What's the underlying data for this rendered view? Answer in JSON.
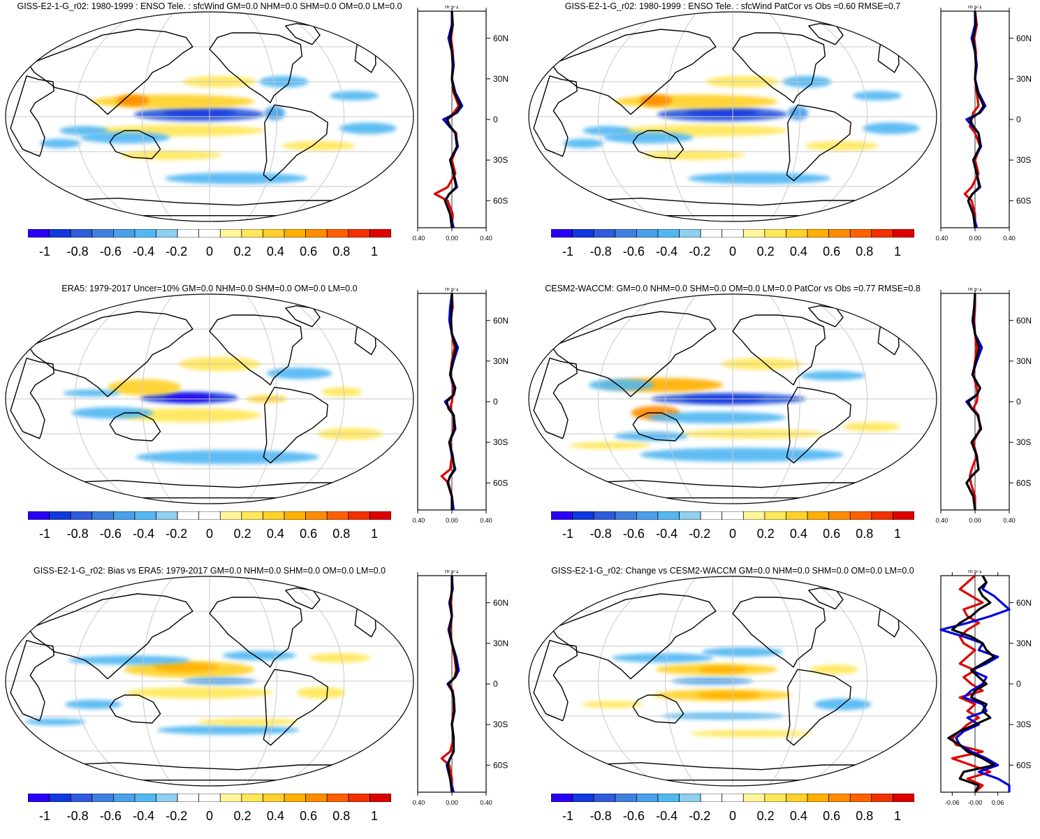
{
  "colorbar": {
    "labels": [
      "-1",
      "-0.8",
      "-0.6",
      "-0.4",
      "-0.2",
      "0",
      "0.2",
      "0.4",
      "0.6",
      "0.8",
      "1"
    ],
    "colors": [
      "#2a00f5",
      "#1238e0",
      "#2f5bdc",
      "#3f7fe0",
      "#4aa0ea",
      "#53b8f2",
      "#8fcff0",
      "#ffffff",
      "#ffffff",
      "#fff59a",
      "#ffe75a",
      "#ffd12a",
      "#ffb000",
      "#ff8c00",
      "#ff6000",
      "#f23000",
      "#dc0000"
    ]
  },
  "zonal_axis": {
    "units": "m s-1",
    "lat_ticks": [
      "60N",
      "30N",
      "0",
      "30S",
      "60S"
    ],
    "x_ticks": [
      "-0.40",
      "0.00",
      "0.40"
    ],
    "x_ticks_change": [
      "-0.06",
      "-0.00",
      "0.06"
    ]
  },
  "panels": [
    {
      "id": "p1",
      "title": "GISS-E2-1-G_r02: 1980-1999 : ENSO Tele. : sfcWind GM=0.0 NHM=0.0 SHM=0.0 OM=0.0 LM=0.0",
      "pattern": "model",
      "scale": "std"
    },
    {
      "id": "p2",
      "title": "GISS-E2-1-G_r02: 1980-1999 : ENSO Tele. : sfcWind PatCor vs Obs =0.60 RMSE=0.7",
      "pattern": "model",
      "scale": "std"
    },
    {
      "id": "p3",
      "title": "ERA5: 1979-2017 Uncer=10% GM=0.0 NHM=0.0 SHM=0.0 OM=0.0 LM=0.0",
      "pattern": "obs",
      "scale": "std"
    },
    {
      "id": "p4",
      "title": "CESM2-WACCM: GM=0.0 NHM=0.0 SHM=0.0 OM=0.0 LM=0.0 PatCor vs Obs =0.77 RMSE=0.8",
      "pattern": "cesm",
      "scale": "std"
    },
    {
      "id": "p5",
      "title": "GISS-E2-1-G_r02: Bias vs ERA5: 1979-2017 GM=0.0 NHM=0.0 SHM=0.0 OM=0.0 LM=0.0",
      "pattern": "bias",
      "scale": "std"
    },
    {
      "id": "p6",
      "title": "GISS-E2-1-G_r02: Change vs CESM2-WACCM GM=0.0 NHM=0.0 SHM=0.0 OM=0.0 LM=0.0",
      "pattern": "change",
      "scale": "change"
    }
  ],
  "chart_data": [
    {
      "type": "heatmap",
      "title": "GISS-E2-1-G_r02: 1980-1999 : ENSO Tele. : sfcWind GM=0.0 NHM=0.0 SHM=0.0 OM=0.0 LM=0.0",
      "colorbar_range": [
        -1,
        1
      ],
      "zonal_mean": {
        "units": "m s-1",
        "xlim": [
          -0.4,
          0.4
        ],
        "lat": [
          80,
          70,
          60,
          50,
          40,
          30,
          20,
          10,
          5,
          0,
          -5,
          -10,
          -20,
          -30,
          -40,
          -50,
          -55,
          -60,
          -70,
          -80
        ],
        "series": [
          {
            "color": "#000000",
            "values": [
              0.0,
              0.01,
              -0.02,
              0.0,
              0.01,
              0.0,
              0.03,
              0.1,
              0.05,
              -0.06,
              -0.02,
              0.04,
              0.06,
              -0.02,
              0.02,
              0.05,
              -0.03,
              -0.08,
              -0.02,
              0.0
            ]
          },
          {
            "color": "#e00000",
            "values": [
              0.0,
              0.01,
              -0.01,
              0.01,
              0.02,
              0.0,
              0.02,
              0.08,
              0.02,
              -0.05,
              -0.03,
              0.05,
              0.06,
              0.0,
              0.04,
              -0.05,
              -0.2,
              -0.05,
              0.01,
              0.0
            ]
          },
          {
            "color": "#0000e0",
            "values": [
              0.0,
              0.0,
              -0.04,
              0.0,
              0.02,
              0.0,
              0.04,
              0.12,
              0.06,
              -0.1,
              -0.03,
              0.04,
              0.07,
              -0.02,
              0.02,
              0.06,
              -0.03,
              -0.08,
              -0.02,
              0.02
            ]
          }
        ]
      }
    },
    {
      "type": "heatmap",
      "title": "GISS-E2-1-G_r02: 1980-1999 : ENSO Tele. : sfcWind PatCor vs Obs =0.60 RMSE=0.7",
      "colorbar_range": [
        -1,
        1
      ],
      "zonal_mean": {
        "units": "m s-1",
        "xlim": [
          -0.4,
          0.4
        ],
        "lat": [
          80,
          70,
          60,
          50,
          40,
          30,
          20,
          10,
          5,
          0,
          -5,
          -10,
          -20,
          -30,
          -40,
          -50,
          -55,
          -60,
          -70,
          -80
        ],
        "series": [
          {
            "color": "#000000",
            "values": [
              0.0,
              0.01,
              -0.02,
              0.0,
              0.01,
              0.0,
              0.03,
              0.1,
              0.05,
              -0.06,
              -0.02,
              0.04,
              0.06,
              -0.02,
              0.02,
              0.05,
              -0.03,
              -0.08,
              -0.02,
              0.0
            ]
          },
          {
            "color": "#e00000",
            "values": [
              0.0,
              0.02,
              -0.01,
              0.01,
              0.01,
              0.0,
              0.02,
              0.04,
              -0.02,
              -0.04,
              -0.06,
              0.0,
              0.06,
              0.0,
              0.04,
              -0.04,
              -0.12,
              -0.04,
              0.0,
              0.0
            ]
          },
          {
            "color": "#0000e0",
            "values": [
              0.0,
              0.0,
              -0.04,
              0.0,
              0.02,
              0.0,
              0.04,
              0.12,
              0.06,
              -0.1,
              -0.03,
              0.04,
              0.07,
              -0.02,
              0.02,
              0.06,
              -0.03,
              -0.08,
              -0.02,
              0.02
            ]
          }
        ]
      }
    },
    {
      "type": "heatmap",
      "title": "ERA5: 1979-2017 Uncer=10% GM=0.0 NHM=0.0 SHM=0.0 OM=0.0 LM=0.0",
      "colorbar_range": [
        -1,
        1
      ],
      "zonal_mean": {
        "units": "m s-1",
        "xlim": [
          -0.4,
          0.4
        ],
        "lat": [
          80,
          70,
          60,
          50,
          40,
          30,
          20,
          10,
          5,
          0,
          -5,
          -10,
          -20,
          -30,
          -40,
          -50,
          -55,
          -60,
          -70,
          -80
        ],
        "series": [
          {
            "color": "#000000",
            "values": [
              0.0,
              0.0,
              -0.01,
              0.0,
              0.05,
              0.01,
              -0.02,
              0.04,
              0.02,
              -0.06,
              -0.04,
              0.02,
              0.03,
              -0.03,
              0.01,
              0.03,
              -0.02,
              -0.05,
              0.0,
              0.0
            ]
          },
          {
            "color": "#e00000",
            "values": [
              0.0,
              0.01,
              -0.02,
              0.0,
              0.03,
              0.0,
              -0.02,
              0.02,
              0.01,
              0.0,
              -0.02,
              0.02,
              0.02,
              -0.02,
              0.0,
              -0.02,
              -0.12,
              -0.04,
              0.0,
              0.0
            ]
          },
          {
            "color": "#0000e0",
            "values": [
              0.0,
              -0.02,
              -0.03,
              0.0,
              0.07,
              0.02,
              -0.02,
              0.03,
              0.02,
              -0.08,
              -0.03,
              0.02,
              0.04,
              -0.03,
              0.0,
              0.04,
              -0.02,
              -0.05,
              0.0,
              0.02
            ]
          }
        ]
      }
    },
    {
      "type": "heatmap",
      "title": "CESM2-WACCM: GM=0.0 NHM=0.0 SHM=0.0 OM=0.0 LM=0.0 PatCor vs Obs =0.77 RMSE=0.8",
      "colorbar_range": [
        -1,
        1
      ],
      "zonal_mean": {
        "units": "m s-1",
        "xlim": [
          -0.4,
          0.4
        ],
        "lat": [
          80,
          70,
          60,
          50,
          40,
          30,
          20,
          10,
          5,
          0,
          -5,
          -10,
          -20,
          -30,
          -40,
          -50,
          -55,
          -60,
          -70,
          -80
        ],
        "series": [
          {
            "color": "#000000",
            "values": [
              0.0,
              -0.01,
              -0.02,
              0.0,
              0.05,
              0.01,
              -0.03,
              0.06,
              0.02,
              -0.08,
              -0.04,
              0.03,
              0.07,
              -0.04,
              0.02,
              0.04,
              -0.04,
              -0.1,
              -0.02,
              0.0
            ]
          },
          {
            "color": "#e00000",
            "values": [
              0.0,
              0.0,
              -0.01,
              0.0,
              0.02,
              0.0,
              -0.02,
              0.02,
              0.03,
              0.02,
              -0.02,
              0.04,
              0.06,
              -0.02,
              0.02,
              -0.04,
              -0.06,
              -0.05,
              0.0,
              0.0
            ]
          },
          {
            "color": "#0000e0",
            "values": [
              0.0,
              -0.01,
              -0.03,
              0.0,
              0.08,
              0.02,
              -0.03,
              0.06,
              0.02,
              -0.1,
              -0.04,
              0.03,
              0.07,
              -0.04,
              0.02,
              0.04,
              -0.04,
              -0.1,
              -0.02,
              0.0
            ]
          }
        ]
      }
    },
    {
      "type": "heatmap",
      "title": "GISS-E2-1-G_r02: Bias vs ERA5: 1979-2017 GM=0.0 NHM=0.0 SHM=0.0 OM=0.0 LM=0.0",
      "colorbar_range": [
        -1,
        1
      ],
      "zonal_mean": {
        "units": "m s-1",
        "xlim": [
          -0.4,
          0.4
        ],
        "lat": [
          80,
          70,
          60,
          50,
          40,
          30,
          20,
          10,
          5,
          0,
          -5,
          -10,
          -20,
          -30,
          -40,
          -50,
          -55,
          -60,
          -70,
          -80
        ],
        "series": [
          {
            "color": "#000000",
            "values": [
              0.0,
              0.0,
              -0.02,
              0.0,
              -0.03,
              0.0,
              0.04,
              0.06,
              0.04,
              -0.04,
              0.0,
              0.02,
              0.03,
              0.0,
              0.02,
              0.02,
              -0.02,
              -0.05,
              -0.02,
              0.0
            ]
          },
          {
            "color": "#e00000",
            "values": [
              0.0,
              0.0,
              -0.01,
              0.0,
              -0.02,
              0.0,
              0.03,
              0.05,
              0.03,
              -0.03,
              0.01,
              0.02,
              0.02,
              0.0,
              0.02,
              -0.02,
              -0.12,
              -0.03,
              0.0,
              0.0
            ]
          },
          {
            "color": "#0000e0",
            "values": [
              0.0,
              0.01,
              -0.03,
              0.0,
              -0.04,
              0.0,
              0.05,
              0.08,
              0.04,
              -0.05,
              0.0,
              0.02,
              0.03,
              0.0,
              0.02,
              0.02,
              -0.02,
              -0.06,
              -0.02,
              0.02
            ]
          }
        ]
      }
    },
    {
      "type": "heatmap",
      "title": "GISS-E2-1-G_r02: Change vs CESM2-WACCM GM=0.0 NHM=0.0 SHM=0.0 OM=0.0 LM=0.0",
      "colorbar_range": [
        -1,
        1
      ],
      "zonal_mean": {
        "units": "m s-1",
        "xlim": [
          -0.09,
          0.09
        ],
        "lat": [
          80,
          75,
          70,
          65,
          60,
          55,
          50,
          45,
          40,
          35,
          30,
          25,
          20,
          15,
          10,
          5,
          0,
          -5,
          -10,
          -15,
          -20,
          -25,
          -30,
          -35,
          -40,
          -45,
          -50,
          -55,
          -60,
          -65,
          -70,
          -75,
          -80
        ],
        "series": [
          {
            "color": "#000000",
            "values": [
              0.02,
              0.03,
              0.01,
              0.02,
              0.04,
              0.01,
              -0.01,
              -0.04,
              -0.06,
              -0.01,
              0.02,
              0.03,
              0.05,
              0.02,
              -0.01,
              0.01,
              0.03,
              0.0,
              -0.01,
              0.03,
              0.02,
              0.04,
              0.0,
              -0.04,
              -0.07,
              -0.04,
              -0.02,
              0.02,
              0.05,
              -0.03,
              -0.04,
              0.01,
              0.0
            ]
          },
          {
            "color": "#e00000",
            "values": [
              0.0,
              -0.02,
              -0.04,
              -0.01,
              0.02,
              -0.03,
              -0.02,
              0.01,
              -0.02,
              -0.04,
              -0.03,
              0.0,
              -0.02,
              -0.04,
              0.0,
              -0.03,
              -0.01,
              0.02,
              -0.04,
              0.0,
              -0.02,
              0.01,
              -0.02,
              -0.04,
              -0.06,
              -0.05,
              0.02,
              -0.06,
              -0.01,
              0.04,
              -0.02,
              0.02,
              0.0
            ]
          },
          {
            "color": "#0000e0",
            "values": [
              0.02,
              0.03,
              0.02,
              0.05,
              0.07,
              0.09,
              0.04,
              -0.02,
              -0.09,
              -0.03,
              0.02,
              0.01,
              0.06,
              0.03,
              -0.01,
              0.03,
              0.02,
              -0.01,
              -0.03,
              0.02,
              0.03,
              -0.02,
              0.01,
              -0.03,
              -0.05,
              -0.04,
              -0.01,
              0.03,
              0.06,
              0.01,
              0.06,
              0.09,
              0.09
            ]
          }
        ]
      }
    }
  ]
}
